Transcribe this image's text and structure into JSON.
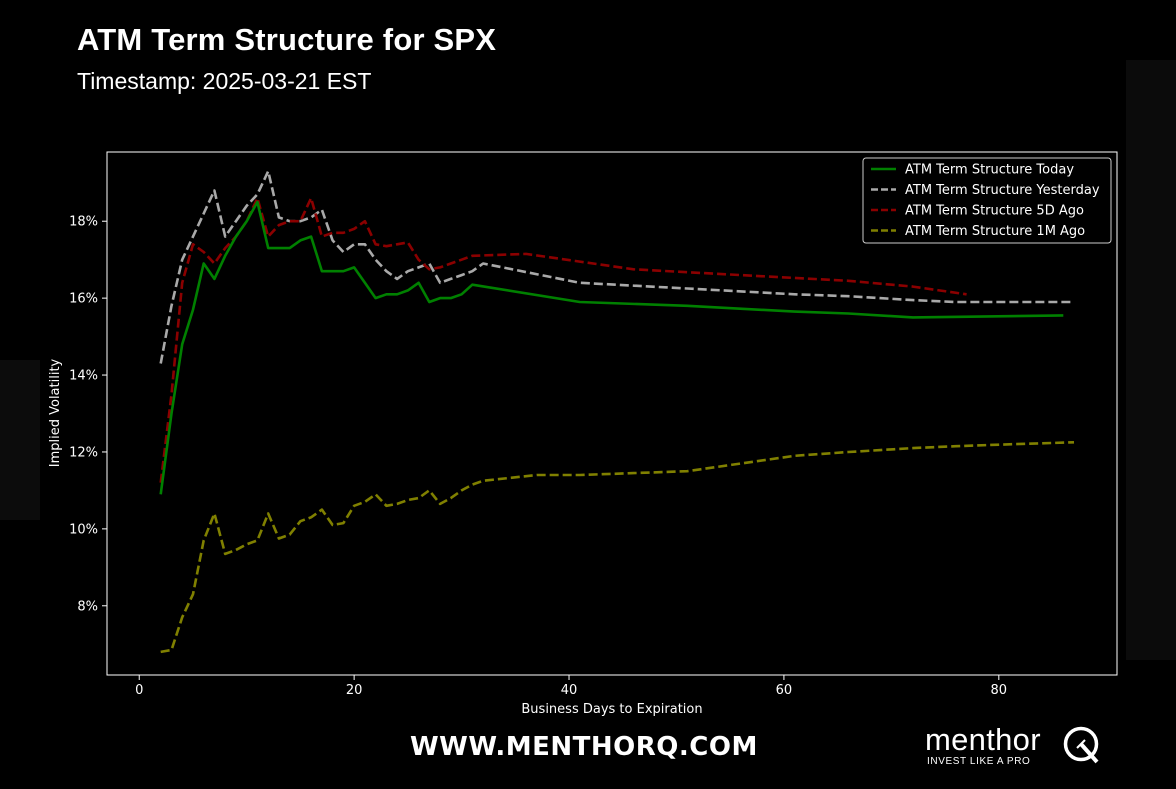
{
  "header": {
    "title": "ATM Term Structure for SPX",
    "subtitle": "Timestamp: 2025-03-21 EST"
  },
  "footer": {
    "url": "WWW.MENTHORQ.COM",
    "brand_name": "menthor",
    "brand_tagline": "INVEST LIKE A PRO"
  },
  "chart_data": {
    "type": "line",
    "title": "ATM Term Structure for SPX",
    "xlabel": "Business Days to Expiration",
    "ylabel": "Implied Volatility",
    "xlim": [
      -3,
      91
    ],
    "ylim": [
      6.2,
      19.8
    ],
    "x_ticks": [
      0,
      20,
      40,
      60,
      80
    ],
    "y_ticks": [
      8,
      10,
      12,
      14,
      16,
      18
    ],
    "y_tick_suffix": "%",
    "grid": false,
    "legend_position": "top-right",
    "background": "#000000",
    "series": [
      {
        "name": "ATM Term Structure Today",
        "color": "#008000",
        "dash": "solid",
        "x": [
          2,
          3,
          4,
          5,
          6,
          7,
          8,
          9,
          10,
          11,
          12,
          13,
          14,
          15,
          16,
          17,
          18,
          19,
          20,
          21,
          22,
          23,
          24,
          25,
          26,
          27,
          28,
          29,
          30,
          31,
          41,
          51,
          61,
          66,
          72,
          86
        ],
        "y": [
          10.9,
          13.0,
          14.8,
          15.7,
          16.9,
          16.5,
          17.1,
          17.6,
          18.0,
          18.5,
          17.3,
          17.3,
          17.3,
          17.5,
          17.6,
          16.7,
          16.7,
          16.7,
          16.8,
          16.4,
          16.0,
          16.1,
          16.1,
          16.2,
          16.4,
          15.9,
          16.0,
          16.0,
          16.1,
          16.35,
          15.9,
          15.8,
          15.65,
          15.6,
          15.5,
          15.55
        ]
      },
      {
        "name": "ATM Term Structure Yesterday",
        "color": "#a9a9a9",
        "dash": "dashed",
        "x": [
          2,
          3,
          4,
          5,
          6,
          7,
          8,
          9,
          10,
          11,
          12,
          13,
          14,
          15,
          16,
          17,
          18,
          19,
          20,
          21,
          22,
          23,
          24,
          25,
          26,
          27,
          28,
          29,
          30,
          31,
          32,
          41,
          51,
          61,
          66,
          72,
          76,
          87
        ],
        "y": [
          14.3,
          15.8,
          17.0,
          17.6,
          18.2,
          18.8,
          17.6,
          18.0,
          18.4,
          18.7,
          19.3,
          18.1,
          18.0,
          18.0,
          18.1,
          18.3,
          17.5,
          17.2,
          17.4,
          17.4,
          17.0,
          16.7,
          16.5,
          16.7,
          16.8,
          16.9,
          16.4,
          16.5,
          16.6,
          16.7,
          16.9,
          16.4,
          16.25,
          16.1,
          16.05,
          15.95,
          15.9,
          15.9
        ]
      },
      {
        "name": "ATM Term Structure 5D Ago",
        "color": "#8b0000",
        "dash": "dashed",
        "x": [
          2,
          3,
          4,
          5,
          6,
          7,
          8,
          9,
          10,
          11,
          12,
          13,
          14,
          15,
          16,
          17,
          18,
          19,
          20,
          21,
          22,
          23,
          24,
          25,
          26,
          27,
          28,
          29,
          30,
          31,
          36,
          41,
          46,
          56,
          66,
          72,
          77
        ],
        "y": [
          11.2,
          13.5,
          16.4,
          17.4,
          17.2,
          16.9,
          17.3,
          17.6,
          18.0,
          18.6,
          17.6,
          17.9,
          18.0,
          18.0,
          18.6,
          17.6,
          17.7,
          17.7,
          17.8,
          18.0,
          17.4,
          17.35,
          17.4,
          17.45,
          17.0,
          16.75,
          16.8,
          16.9,
          17.0,
          17.1,
          17.15,
          16.95,
          16.75,
          16.6,
          16.45,
          16.3,
          16.1
        ]
      },
      {
        "name": "ATM Term Structure 1M Ago",
        "color": "#808000",
        "dash": "dashed",
        "x": [
          2,
          3,
          4,
          5,
          6,
          7,
          8,
          9,
          10,
          11,
          12,
          13,
          14,
          15,
          16,
          17,
          18,
          19,
          20,
          21,
          22,
          23,
          24,
          25,
          26,
          27,
          28,
          29,
          30,
          31,
          32,
          37,
          41,
          46,
          51,
          56,
          61,
          66,
          72,
          76,
          81,
          87
        ],
        "y": [
          6.8,
          6.85,
          7.7,
          8.3,
          9.7,
          10.4,
          9.35,
          9.45,
          9.6,
          9.7,
          10.4,
          9.75,
          9.85,
          10.2,
          10.3,
          10.5,
          10.1,
          10.15,
          10.6,
          10.7,
          10.9,
          10.6,
          10.65,
          10.75,
          10.8,
          11.0,
          10.65,
          10.8,
          11.0,
          11.15,
          11.25,
          11.4,
          11.4,
          11.45,
          11.5,
          11.7,
          11.9,
          12.0,
          12.1,
          12.15,
          12.2,
          12.25
        ]
      }
    ]
  }
}
